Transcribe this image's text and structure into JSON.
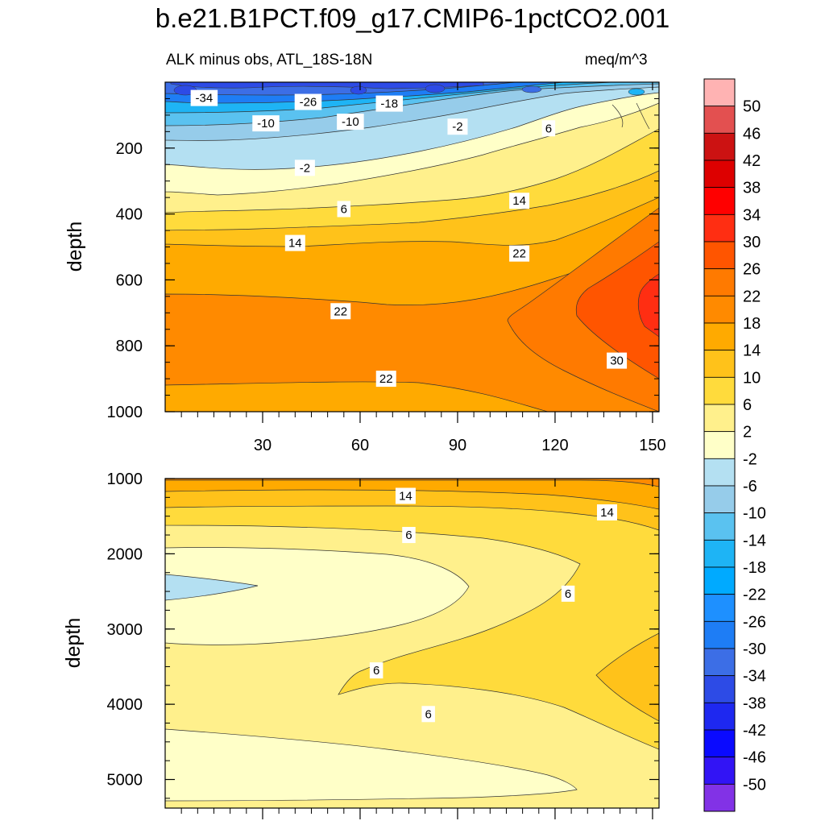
{
  "figure": {
    "title": "b.e21.B1PCT.f09_g17.CMIP6-1pctCO2.001",
    "left_subtitle": "ALK minus obs, ATL_18S-18N",
    "right_subtitle": "meq/m^3"
  },
  "chart_data": [
    {
      "type": "contour",
      "panel": "upper",
      "ylabel": "depth",
      "xlim": [
        0,
        152
      ],
      "ylim": [
        1000,
        0
      ],
      "x_ticks": [
        30,
        60,
        90,
        120,
        150
      ],
      "y_ticks": [
        200,
        400,
        600,
        800,
        1000
      ],
      "contour_labels": [
        {
          "text": "-34",
          "x": 12,
          "y": 48
        },
        {
          "text": "-26",
          "x": 44,
          "y": 60
        },
        {
          "text": "-18",
          "x": 69,
          "y": 65
        },
        {
          "text": "-10",
          "x": 31,
          "y": 125
        },
        {
          "text": "-10",
          "x": 57,
          "y": 120
        },
        {
          "text": "-2",
          "x": 90,
          "y": 135
        },
        {
          "text": "6",
          "x": 118,
          "y": 140
        },
        {
          "text": "-2",
          "x": 43,
          "y": 260
        },
        {
          "text": "6",
          "x": 55,
          "y": 385
        },
        {
          "text": "14",
          "x": 109,
          "y": 360
        },
        {
          "text": "14",
          "x": 40,
          "y": 488
        },
        {
          "text": "22",
          "x": 109,
          "y": 520
        },
        {
          "text": "22",
          "x": 54,
          "y": 695
        },
        {
          "text": "30",
          "x": 139,
          "y": 845
        },
        {
          "text": "22",
          "x": 68,
          "y": 900
        }
      ]
    },
    {
      "type": "contour",
      "panel": "lower",
      "ylabel": "depth",
      "xlim": [
        0,
        152
      ],
      "ylim": [
        5380,
        1000
      ],
      "y_ticks": [
        1000,
        2000,
        3000,
        4000,
        5000
      ],
      "contour_labels": [
        {
          "text": "14",
          "x": 74,
          "y": 1230
        },
        {
          "text": "14",
          "x": 136,
          "y": 1450
        },
        {
          "text": "6",
          "x": 75,
          "y": 1750
        },
        {
          "text": "6",
          "x": 124,
          "y": 2530
        },
        {
          "text": "6",
          "x": 65,
          "y": 3550
        },
        {
          "text": "6",
          "x": 81,
          "y": 4130
        }
      ]
    }
  ],
  "colorbar": {
    "labels": [
      "50",
      "46",
      "42",
      "38",
      "34",
      "30",
      "26",
      "22",
      "18",
      "14",
      "10",
      "6",
      "2",
      "-2",
      "-6",
      "-10",
      "-14",
      "-18",
      "-22",
      "-26",
      "-30",
      "-34",
      "-38",
      "-42",
      "-46",
      "-50"
    ],
    "colors_top_to_bottom": [
      "#ffb3b3",
      "#e35050",
      "#cc1212",
      "#dd0000",
      "#ff0000",
      "#ff2e12",
      "#ff5500",
      "#ff7a00",
      "#ff8a00",
      "#ffaa00",
      "#ffc21a",
      "#ffdb3c",
      "#fff08c",
      "#ffffc8",
      "#b4e0f2",
      "#96ccea",
      "#5ac2f0",
      "#1eb4f5",
      "#00aaff",
      "#1e90ff",
      "#1e7df5",
      "#3c6ee6",
      "#2d4be6",
      "#1e28f0",
      "#0a0aff",
      "#3214f5",
      "#8232e6"
    ]
  },
  "palette": {
    "c_m50": "#2d4be6",
    "c_m34": "#3c6ee6",
    "c_m26": "#1e7df5",
    "c_m18": "#1eb4f5",
    "c_m10": "#5ac2f0",
    "c_m6": "#96ccea",
    "c_m2": "#b4e0f2",
    "c_p2": "#ffffc8",
    "c_p6": "#fff08c",
    "c_p10": "#ffdb3c",
    "c_p14": "#ffc21a",
    "c_p18": "#ffaa00",
    "c_p22": "#ff8a00",
    "c_p26": "#ff7a00",
    "c_p30": "#ff5500",
    "c_p34": "#ff2e12",
    "c_p38": "#ff0000"
  }
}
